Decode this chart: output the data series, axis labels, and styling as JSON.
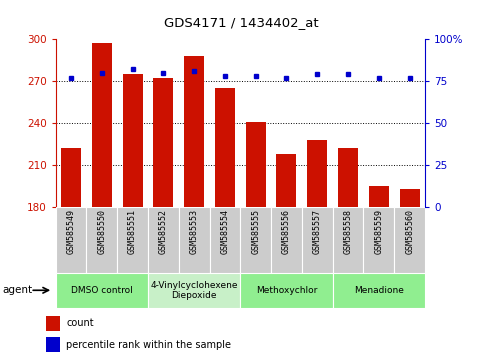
{
  "title": "GDS4171 / 1434402_at",
  "samples": [
    "GSM585549",
    "GSM585550",
    "GSM585551",
    "GSM585552",
    "GSM585553",
    "GSM585554",
    "GSM585555",
    "GSM585556",
    "GSM585557",
    "GSM585558",
    "GSM585559",
    "GSM585560"
  ],
  "bar_values": [
    222,
    297,
    275,
    272,
    288,
    265,
    241,
    218,
    228,
    222,
    195,
    193
  ],
  "dot_values": [
    77,
    80,
    82,
    80,
    81,
    78,
    78,
    77,
    79,
    79,
    77,
    77
  ],
  "ylim_left": [
    180,
    300
  ],
  "ylim_right": [
    0,
    100
  ],
  "yticks_left": [
    180,
    210,
    240,
    270,
    300
  ],
  "yticks_right": [
    0,
    25,
    50,
    75,
    100
  ],
  "bar_color": "#cc1100",
  "dot_color": "#0000cc",
  "agents": [
    {
      "label": "DMSO control",
      "start": 0,
      "end": 3,
      "color": "#90ee90"
    },
    {
      "label": "4-Vinylcyclohexene\nDiepoxide",
      "start": 3,
      "end": 6,
      "color": "#c8f0c8"
    },
    {
      "label": "Methoxychlor",
      "start": 6,
      "end": 9,
      "color": "#90ee90"
    },
    {
      "label": "Menadione",
      "start": 9,
      "end": 12,
      "color": "#90ee90"
    }
  ],
  "agent_label": "agent",
  "legend_count": "count",
  "legend_percentile": "percentile rank within the sample",
  "grid_yticks": [
    210,
    240,
    270
  ],
  "bar_color_hex": "#cc1100",
  "dot_color_hex": "#0000cc",
  "background_color": "#ffffff",
  "tick_label_bg": "#cccccc"
}
